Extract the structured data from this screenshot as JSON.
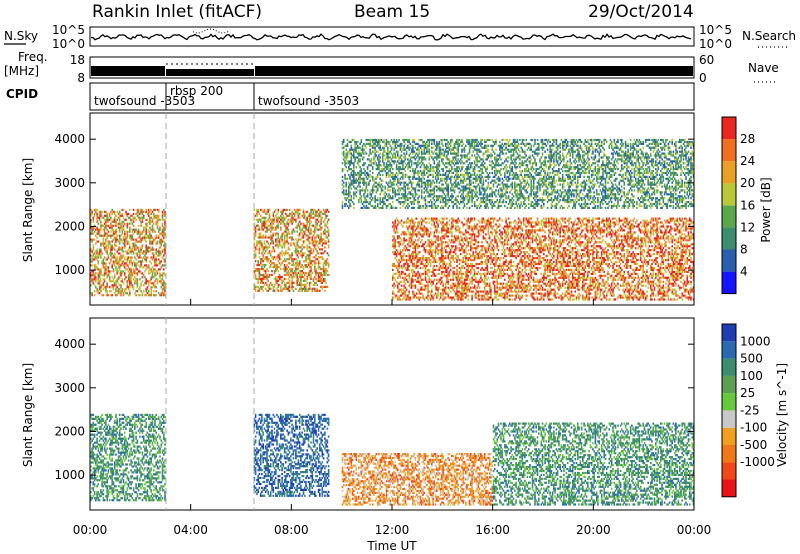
{
  "header": {
    "station": "Rankin Inlet (fitACF)",
    "beam": "Beam 15",
    "date": "29/Oct/2014"
  },
  "top_strip": {
    "noise": {
      "left_label": "N.Sky",
      "right_label": "N.Search",
      "left_ticks": [
        "10^5",
        "10^0"
      ],
      "right_ticks": [
        "10^5",
        "10^0"
      ]
    },
    "freq": {
      "left_label_1": "Freq.",
      "left_label_2": "[MHz]",
      "right_label": "Nave",
      "left_ticks": [
        "18",
        "8"
      ],
      "right_ticks": [
        "60",
        "0"
      ]
    },
    "cpid": {
      "label": "CPID",
      "segments": [
        {
          "start_h": 0,
          "end_h": 3,
          "name": "twofsound  -3503"
        },
        {
          "start_h": 3,
          "end_h": 6.5,
          "name": "rbsp  200"
        },
        {
          "start_h": 6.5,
          "end_h": 24,
          "name": "twofsound  -3503"
        }
      ]
    }
  },
  "chart_data": [
    {
      "type": "heatmap",
      "panel": "power",
      "ylabel": "Slant Range [km]",
      "yticks": [
        "1000",
        "2000",
        "3000",
        "4000"
      ],
      "ylim": [
        200,
        4600
      ],
      "xlim": [
        0,
        24
      ],
      "colorbar": {
        "label": "Power [dB]",
        "ticks": [
          "4",
          "8",
          "12",
          "16",
          "20",
          "24",
          "28"
        ],
        "colors": [
          "#1414ff",
          "#2a5fb0",
          "#3c8c6e",
          "#5aa84a",
          "#b8c836",
          "#e8a026",
          "#f07020",
          "#e8281e"
        ]
      },
      "echo_regions": [
        {
          "t0": 0,
          "t1": 3,
          "r0": 400,
          "r1": 2400,
          "dominant": "orange-red"
        },
        {
          "t0": 6.5,
          "t1": 9.5,
          "r0": 500,
          "r1": 2400,
          "dominant": "orange-red"
        },
        {
          "t0": 12,
          "t1": 24,
          "r0": 300,
          "r1": 2200,
          "dominant": "red"
        },
        {
          "t0": 10,
          "t1": 24,
          "r0": 2400,
          "r1": 4000,
          "dominant": "green"
        }
      ]
    },
    {
      "type": "heatmap",
      "panel": "velocity",
      "ylabel": "Slant Range [km]",
      "yticks": [
        "1000",
        "2000",
        "3000",
        "4000"
      ],
      "ylim": [
        200,
        4600
      ],
      "xlim": [
        0,
        24
      ],
      "xlabel": "Time UT",
      "xticks": [
        "00:00",
        "04:00",
        "08:00",
        "12:00",
        "16:00",
        "20:00",
        "00:00"
      ],
      "colorbar": {
        "label": "Velocity [m s^-1]",
        "ticks": [
          "1000",
          "500",
          "100",
          "25",
          "-25",
          "-100",
          "-500",
          "-1000"
        ],
        "colors": [
          "#1e3cb4",
          "#2a6ab0",
          "#3c8c6e",
          "#5aa050",
          "#66c83c",
          "#c8c8c8",
          "#f0a020",
          "#f07818",
          "#f04818",
          "#e81414"
        ]
      },
      "echo_regions": [
        {
          "t0": 0,
          "t1": 3,
          "r0": 400,
          "r1": 2400,
          "dominant": "green"
        },
        {
          "t0": 6.5,
          "t1": 9.5,
          "r0": 500,
          "r1": 2400,
          "dominant": "blue"
        },
        {
          "t0": 10,
          "t1": 16,
          "r0": 300,
          "r1": 1500,
          "dominant": "orange"
        },
        {
          "t0": 16,
          "t1": 24,
          "r0": 300,
          "r1": 2200,
          "dominant": "green"
        }
      ]
    }
  ]
}
